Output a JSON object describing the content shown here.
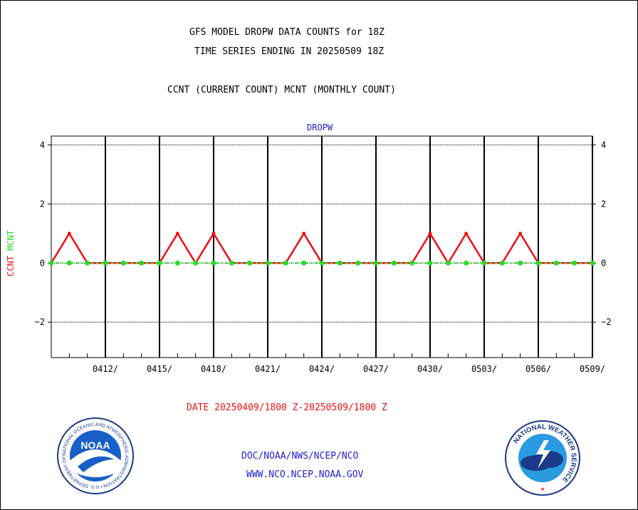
{
  "header": {
    "title_line1": "GFS MODEL DROPW DATA COUNTS for 18Z",
    "title_line2": "TIME SERIES ENDING IN 20250509 18Z",
    "subtitle": "CCNT (CURRENT COUNT) MCNT (MONTHLY COUNT)"
  },
  "footer": {
    "date_range": "DATE 20250409/1800 Z-20250509/1800 Z",
    "org": "DOC/NOAA/NWS/NCEP/NCO",
    "url": "WWW.NCO.NCEP.NOAA.GOV"
  },
  "logos": {
    "noaa_text": "NOAA",
    "noaa_ring": "NATIONAL OCEANIC AND ATMOSPHERIC ADMINISTRATION • U.S. DEPARTMENT OF COMMERCE •",
    "nws_ring": "NATIONAL WEATHER SERVICE"
  },
  "colors": {
    "ccnt": "#ee1111",
    "mcnt": "#22dd22",
    "label_blue": "#2222cc",
    "date_red": "#ee1111"
  },
  "chart_data": {
    "type": "line",
    "title": "DROPW",
    "ylabel_parts": [
      {
        "text": "CCNT",
        "color": "#ee1111"
      },
      {
        "text": "MCNT",
        "color": "#22dd22"
      }
    ],
    "ylim": [
      -3.2,
      4.3
    ],
    "yticks": [
      4,
      2,
      0,
      -2
    ],
    "ytick_labels": [
      "4",
      "2",
      "0",
      "−2"
    ],
    "xlim": [
      "2025-04-09",
      "2025-05-09"
    ],
    "xticks": [
      "2025-04-12",
      "2025-04-15",
      "2025-04-18",
      "2025-04-21",
      "2025-04-24",
      "2025-04-27",
      "2025-04-30",
      "2025-05-03",
      "2025-05-06",
      "2025-05-09"
    ],
    "xtick_labels": [
      "0412/",
      "0415/",
      "0418/",
      "0421/",
      "0424/",
      "0427/",
      "0430/",
      "0503/",
      "0506/",
      "0509/"
    ],
    "grid": true,
    "series": [
      {
        "name": "CCNT",
        "color": "#ee1111",
        "x": [
          "2025-04-09",
          "2025-04-10",
          "2025-04-11",
          "2025-04-12",
          "2025-04-13",
          "2025-04-14",
          "2025-04-15",
          "2025-04-16",
          "2025-04-17",
          "2025-04-18",
          "2025-04-19",
          "2025-04-20",
          "2025-04-21",
          "2025-04-22",
          "2025-04-23",
          "2025-04-24",
          "2025-04-25",
          "2025-04-26",
          "2025-04-27",
          "2025-04-28",
          "2025-04-29",
          "2025-04-30",
          "2025-05-01",
          "2025-05-02",
          "2025-05-03",
          "2025-05-04",
          "2025-05-05",
          "2025-05-06",
          "2025-05-07",
          "2025-05-08",
          "2025-05-09"
        ],
        "values": [
          0,
          1,
          0,
          0,
          0,
          0,
          0,
          1,
          0,
          1,
          0,
          0,
          0,
          0,
          1,
          0,
          0,
          0,
          0,
          0,
          0,
          1,
          0,
          1,
          0,
          0,
          1,
          0,
          0,
          0,
          0
        ]
      },
      {
        "name": "MCNT",
        "color": "#22dd22",
        "x": [
          "2025-04-09",
          "2025-04-10",
          "2025-04-11",
          "2025-04-12",
          "2025-04-13",
          "2025-04-14",
          "2025-04-15",
          "2025-04-16",
          "2025-04-17",
          "2025-04-18",
          "2025-04-19",
          "2025-04-20",
          "2025-04-21",
          "2025-04-22",
          "2025-04-23",
          "2025-04-24",
          "2025-04-25",
          "2025-04-26",
          "2025-04-27",
          "2025-04-28",
          "2025-04-29",
          "2025-04-30",
          "2025-05-01",
          "2025-05-02",
          "2025-05-03",
          "2025-05-04",
          "2025-05-05",
          "2025-05-06",
          "2025-05-07",
          "2025-05-08",
          "2025-05-09"
        ],
        "values": [
          0,
          0,
          0,
          0,
          0,
          0,
          0,
          0,
          0,
          0,
          0,
          0,
          0,
          0,
          0,
          0,
          0,
          0,
          0,
          0,
          0,
          0,
          0,
          0,
          0,
          0,
          0,
          0,
          0,
          0,
          0
        ]
      }
    ]
  }
}
